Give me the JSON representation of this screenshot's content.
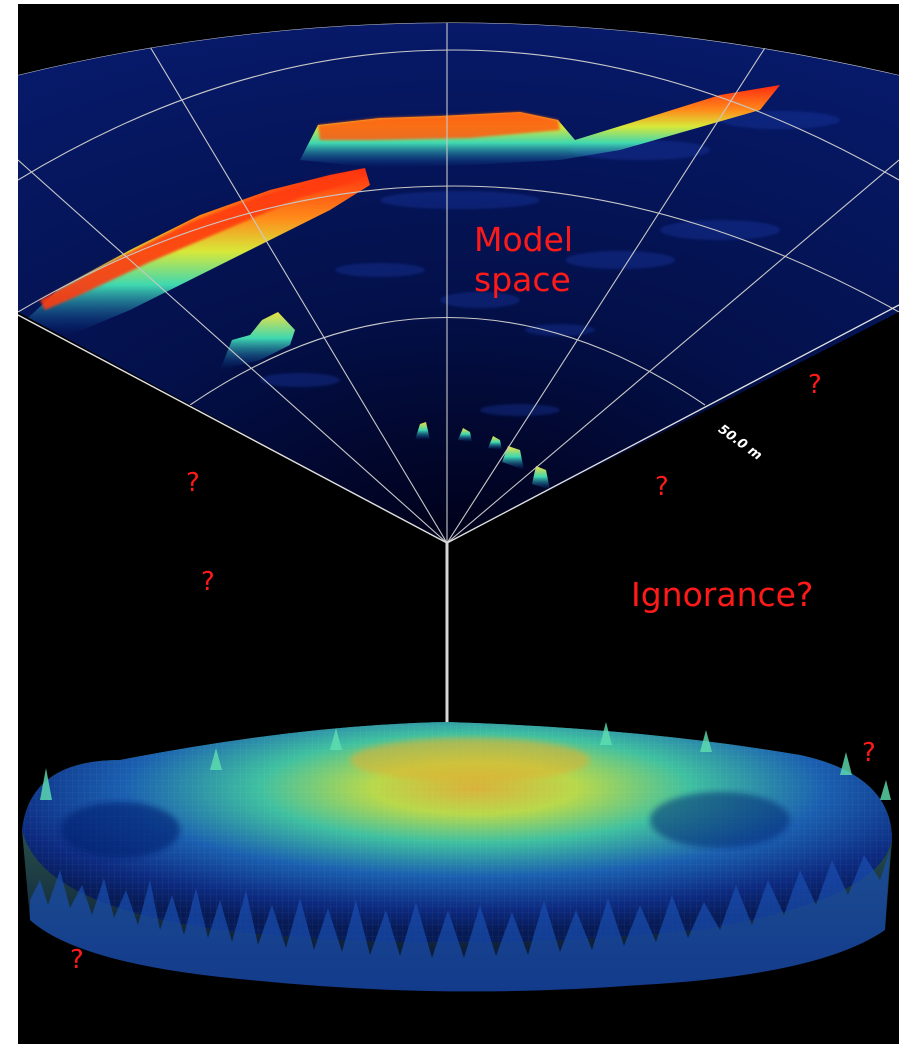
{
  "labels": {
    "model_space": [
      "Model",
      "space"
    ],
    "ignorance": "Ignorance?",
    "question_mark": "?"
  },
  "range_label": "50.0 m",
  "colors": {
    "background": "#000000",
    "frame": "#ffffff",
    "text": "#ff1a1a",
    "gridline": "#bfbfbf",
    "colormap": [
      "#0a0a4a",
      "#0c2fa8",
      "#1a7fd0",
      "#2fd0d0",
      "#6fe87a",
      "#f0e040",
      "#ff8a1a",
      "#ff2a10"
    ]
  }
}
